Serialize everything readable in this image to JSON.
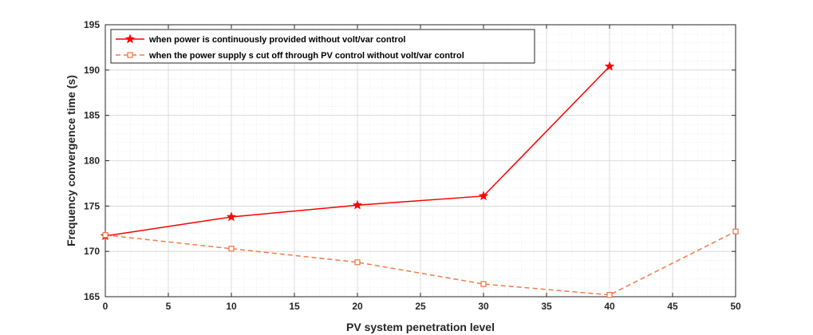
{
  "chart_data": {
    "type": "line",
    "xlabel": "PV system penetration level",
    "ylabel": "Frequency convergence time (s)",
    "xlim": [
      0,
      50
    ],
    "ylim": [
      165,
      195
    ],
    "xticks": [
      0,
      5,
      10,
      15,
      20,
      25,
      30,
      35,
      40,
      45,
      50
    ],
    "yticks": [
      165,
      170,
      175,
      180,
      185,
      190,
      195
    ],
    "grid": true,
    "legend_position": "top-left",
    "series": [
      {
        "name": "when power is continuously provided without volt/var control",
        "color": "#ff0000",
        "line_style": "solid",
        "marker": "star",
        "x": [
          0,
          10,
          20,
          30,
          40
        ],
        "y": [
          171.7,
          173.8,
          175.1,
          176.1,
          190.4
        ]
      },
      {
        "name": "when the power supply s cut off through PV control without volt/var control",
        "color": "#f47a48",
        "line_style": "dashed",
        "marker": "square",
        "x": [
          0,
          10,
          20,
          30,
          40,
          50
        ],
        "y": [
          171.8,
          170.3,
          168.8,
          166.4,
          165.2,
          172.2
        ]
      }
    ]
  }
}
